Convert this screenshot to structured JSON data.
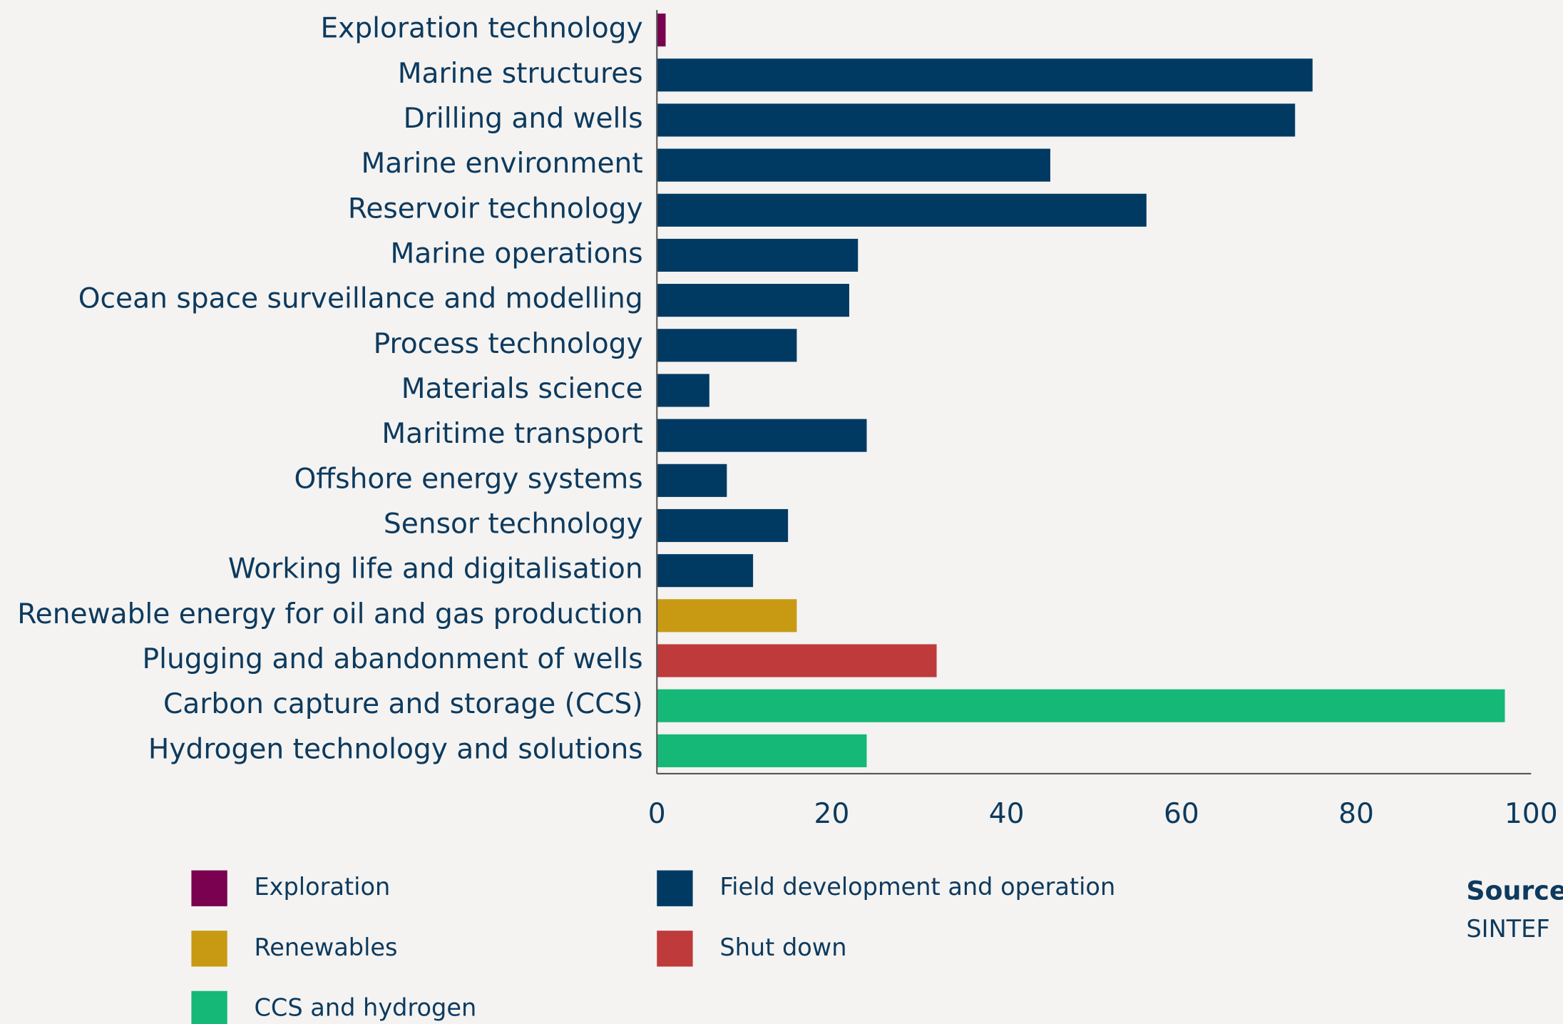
{
  "chart_data": {
    "type": "bar",
    "orientation": "horizontal",
    "categories": [
      "Exploration technology",
      "Marine structures",
      "Drilling and wells",
      "Marine environment",
      "Reservoir technology",
      "Marine operations",
      "Ocean space surveillance and modelling",
      "Process technology",
      "Materials science",
      "Maritime transport",
      "Offshore energy systems",
      "Sensor technology",
      "Working life and digitalisation",
      "Renewable energy for oil and gas production",
      "Plugging and abandonment of wells",
      "Carbon capture and storage (CCS)",
      "Hydrogen technology and solutions"
    ],
    "values": [
      1,
      75,
      73,
      45,
      56,
      23,
      22,
      16,
      6,
      24,
      8,
      15,
      11,
      16,
      32,
      97,
      24
    ],
    "colors": [
      "#7a0050",
      "#003a63",
      "#003a63",
      "#003a63",
      "#003a63",
      "#003a63",
      "#003a63",
      "#003a63",
      "#003a63",
      "#003a63",
      "#003a63",
      "#003a63",
      "#003a63",
      "#c89a14",
      "#bf3a3a",
      "#16b877",
      "#16b877"
    ],
    "legend": [
      {
        "name": "Exploration",
        "color": "#7a0050"
      },
      {
        "name": "Field development and operation",
        "color": "#003a63"
      },
      {
        "name": "Renewables",
        "color": "#c89a14"
      },
      {
        "name": "Shut down",
        "color": "#bf3a3a"
      },
      {
        "name": "CCS and hydrogen",
        "color": "#16b877"
      }
    ],
    "xlim": [
      0,
      100
    ],
    "xticks": [
      0,
      20,
      40,
      60,
      80,
      100
    ],
    "grid": false,
    "source_title": "Source",
    "source": "SINTEF"
  }
}
